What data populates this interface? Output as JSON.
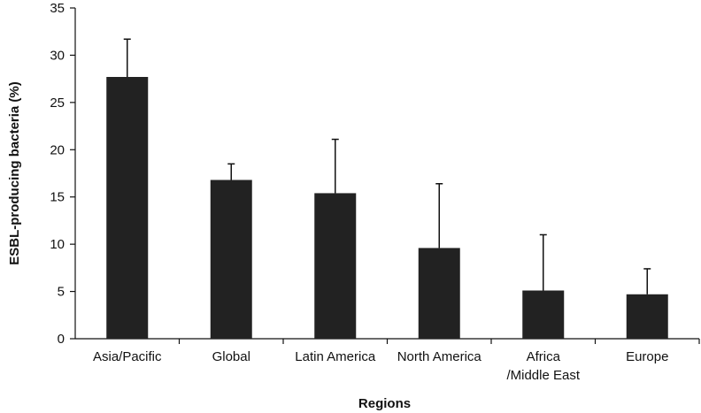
{
  "chart_data": {
    "type": "bar",
    "title": "",
    "xlabel": "Regions",
    "ylabel": "ESBL-producing bacteria (%)",
    "ylim": [
      0,
      35
    ],
    "yticks": [
      0,
      5,
      10,
      15,
      20,
      25,
      30,
      35
    ],
    "categories": [
      [
        "Asia/Pacific"
      ],
      [
        "Global"
      ],
      [
        "Latin America"
      ],
      [
        "North America"
      ],
      [
        "Africa",
        "/Middle East"
      ],
      [
        "Europe"
      ]
    ],
    "values": [
      27.7,
      16.8,
      15.4,
      9.6,
      5.1,
      4.7
    ],
    "error_upper": [
      31.7,
      18.5,
      21.1,
      16.4,
      11.0,
      7.4
    ],
    "grid": false,
    "bar_color": "#222222"
  }
}
